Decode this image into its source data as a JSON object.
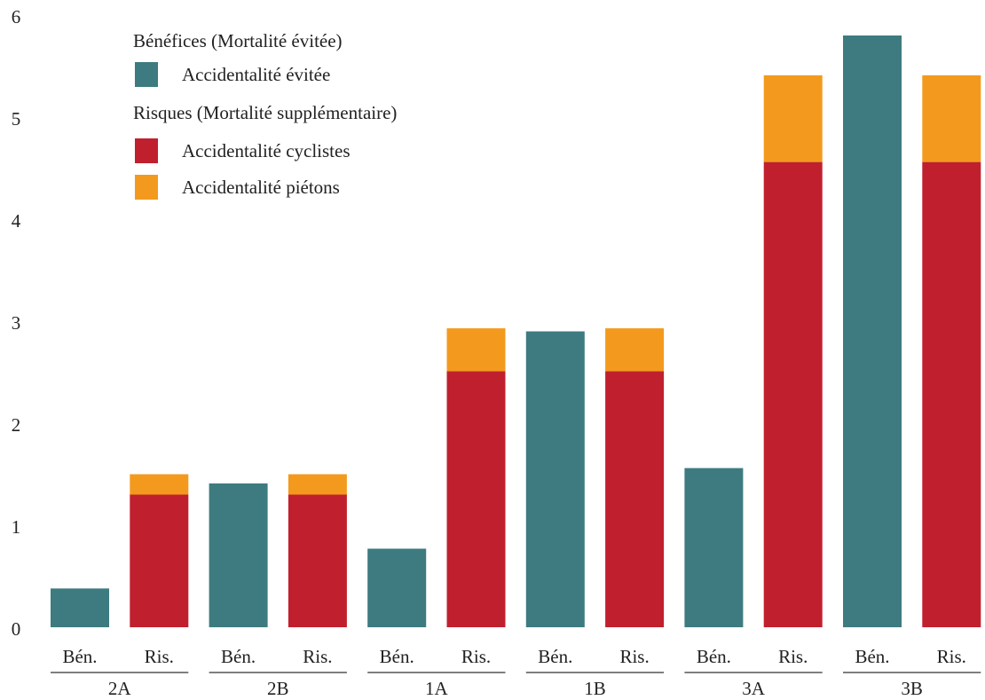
{
  "chart_data": {
    "type": "stacked_bar",
    "legend_headings": [
      "Bénéfices (Mortalité évitée)",
      "Risques (Mortalité supplémentaire)"
    ],
    "categories": [
      "Bén.",
      "Ris.",
      "Bén.",
      "Ris.",
      "Bén.",
      "Ris.",
      "Bén.",
      "Ris.",
      "Bén.",
      "Ris.",
      "Bén.",
      "Ris."
    ],
    "groups": [
      "2A",
      "2B",
      "1A",
      "1B",
      "3A",
      "3B"
    ],
    "series": [
      {
        "name": "Accidentalité évitée",
        "color": "#3d7b80",
        "values": [
          0.38,
          null,
          1.41,
          null,
          0.77,
          null,
          2.9,
          null,
          1.56,
          null,
          5.8,
          null
        ]
      },
      {
        "name": "Accidentalité cyclistes",
        "color": "#c0202e",
        "values": [
          null,
          1.3,
          null,
          1.3,
          null,
          2.51,
          null,
          2.51,
          null,
          4.56,
          null,
          4.56
        ]
      },
      {
        "name": "Accidentalité piétons",
        "color": "#f39a1e",
        "values": [
          null,
          0.2,
          null,
          0.2,
          null,
          0.42,
          null,
          0.42,
          null,
          0.85,
          null,
          0.85
        ]
      }
    ],
    "ylim": [
      0,
      6
    ],
    "yticks": [
      0,
      1,
      2,
      3,
      4,
      5,
      6
    ],
    "grid": false
  }
}
